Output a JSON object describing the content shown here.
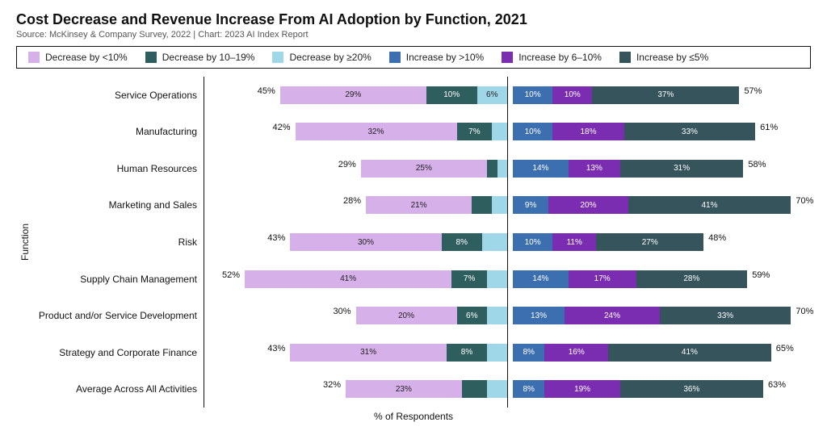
{
  "title": "Cost Decrease and Revenue Increase From AI Adoption by Function, 2021",
  "subtitle": "Source: McKinsey & Company Survey, 2022 | Chart: 2023 AI Index Report",
  "yaxis_label": "Function",
  "xaxis_label": "% of Respondents",
  "legend": [
    {
      "label": "Decrease by <10%",
      "color": "#d6b0e8",
      "darkText": true
    },
    {
      "label": "Decrease by 10–19%",
      "color": "#2f5e5e",
      "darkText": false
    },
    {
      "label": "Decrease by ≥20%",
      "color": "#9fd7e8",
      "darkText": true
    },
    {
      "label": "Increase by >10%",
      "color": "#3b6fb0",
      "darkText": false
    },
    {
      "label": "Increase by 6–10%",
      "color": "#7a2db0",
      "darkText": false
    },
    {
      "label": "Increase by ≤5%",
      "color": "#36545c",
      "darkText": false
    }
  ],
  "left_scale_max": 60,
  "right_scale_max": 75,
  "rows": [
    {
      "label": "Service Operations",
      "left_total": 45,
      "left_segments": [
        29,
        10,
        6
      ],
      "right_total": 57,
      "right_segments": [
        10,
        10,
        37
      ]
    },
    {
      "label": "Manufacturing",
      "left_total": 42,
      "left_segments": [
        32,
        7,
        3
      ],
      "right_total": 61,
      "right_segments": [
        10,
        18,
        33
      ]
    },
    {
      "label": "Human Resources",
      "left_total": 29,
      "left_segments": [
        25,
        2,
        2
      ],
      "right_total": 58,
      "right_segments": [
        14,
        13,
        31
      ]
    },
    {
      "label": "Marketing and Sales",
      "left_total": 28,
      "left_segments": [
        21,
        4,
        3
      ],
      "right_total": 70,
      "right_segments": [
        9,
        20,
        41
      ]
    },
    {
      "label": "Risk",
      "left_total": 43,
      "left_segments": [
        30,
        8,
        5
      ],
      "right_total": 48,
      "right_segments": [
        10,
        11,
        27
      ]
    },
    {
      "label": "Supply Chain Management",
      "left_total": 52,
      "left_segments": [
        41,
        7,
        4
      ],
      "right_total": 59,
      "right_segments": [
        14,
        17,
        28
      ]
    },
    {
      "label": "Product and/or Service Development",
      "left_total": 30,
      "left_segments": [
        20,
        6,
        4
      ],
      "right_total": 70,
      "right_segments": [
        13,
        24,
        33
      ]
    },
    {
      "label": "Strategy and Corporate Finance",
      "left_total": 43,
      "left_segments": [
        31,
        8,
        4
      ],
      "right_total": 65,
      "right_segments": [
        8,
        16,
        41
      ]
    },
    {
      "label": "Average Across All Activities",
      "left_total": 32,
      "left_segments": [
        23,
        5,
        4
      ],
      "right_total": 63,
      "right_segments": [
        8,
        19,
        36
      ]
    }
  ],
  "left_show_threshold": 6,
  "right_show_threshold": 7
}
